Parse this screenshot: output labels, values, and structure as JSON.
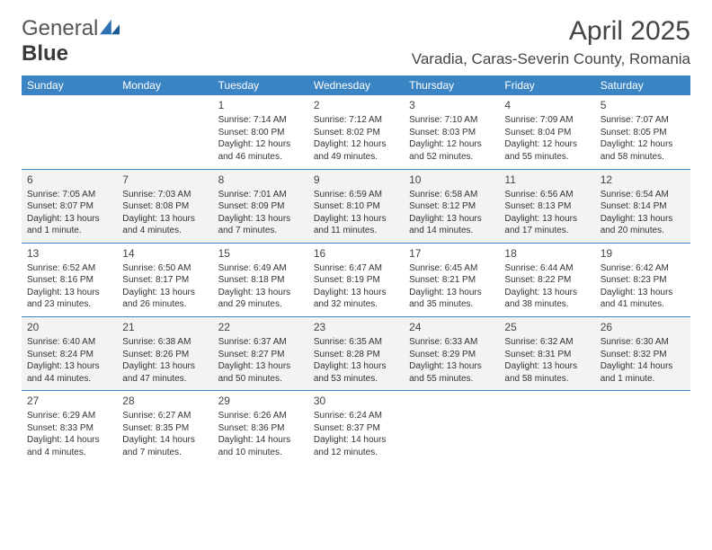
{
  "logo": {
    "word1": "General",
    "word2": "Blue"
  },
  "header": {
    "title": "April 2025",
    "subtitle": "Varadia, Caras-Severin County, Romania"
  },
  "colors": {
    "header_bg": "#3b84c4",
    "header_fg": "#ffffff",
    "row_alt_bg": "#f3f3f3",
    "border": "#3b84c4",
    "text": "#333333",
    "logo_accent": "#2f72b4"
  },
  "days": [
    "Sunday",
    "Monday",
    "Tuesday",
    "Wednesday",
    "Thursday",
    "Friday",
    "Saturday"
  ],
  "weeks": [
    [
      null,
      null,
      {
        "n": "1",
        "sunrise": "Sunrise: 7:14 AM",
        "sunset": "Sunset: 8:00 PM",
        "dl1": "Daylight: 12 hours",
        "dl2": "and 46 minutes."
      },
      {
        "n": "2",
        "sunrise": "Sunrise: 7:12 AM",
        "sunset": "Sunset: 8:02 PM",
        "dl1": "Daylight: 12 hours",
        "dl2": "and 49 minutes."
      },
      {
        "n": "3",
        "sunrise": "Sunrise: 7:10 AM",
        "sunset": "Sunset: 8:03 PM",
        "dl1": "Daylight: 12 hours",
        "dl2": "and 52 minutes."
      },
      {
        "n": "4",
        "sunrise": "Sunrise: 7:09 AM",
        "sunset": "Sunset: 8:04 PM",
        "dl1": "Daylight: 12 hours",
        "dl2": "and 55 minutes."
      },
      {
        "n": "5",
        "sunrise": "Sunrise: 7:07 AM",
        "sunset": "Sunset: 8:05 PM",
        "dl1": "Daylight: 12 hours",
        "dl2": "and 58 minutes."
      }
    ],
    [
      {
        "n": "6",
        "sunrise": "Sunrise: 7:05 AM",
        "sunset": "Sunset: 8:07 PM",
        "dl1": "Daylight: 13 hours",
        "dl2": "and 1 minute."
      },
      {
        "n": "7",
        "sunrise": "Sunrise: 7:03 AM",
        "sunset": "Sunset: 8:08 PM",
        "dl1": "Daylight: 13 hours",
        "dl2": "and 4 minutes."
      },
      {
        "n": "8",
        "sunrise": "Sunrise: 7:01 AM",
        "sunset": "Sunset: 8:09 PM",
        "dl1": "Daylight: 13 hours",
        "dl2": "and 7 minutes."
      },
      {
        "n": "9",
        "sunrise": "Sunrise: 6:59 AM",
        "sunset": "Sunset: 8:10 PM",
        "dl1": "Daylight: 13 hours",
        "dl2": "and 11 minutes."
      },
      {
        "n": "10",
        "sunrise": "Sunrise: 6:58 AM",
        "sunset": "Sunset: 8:12 PM",
        "dl1": "Daylight: 13 hours",
        "dl2": "and 14 minutes."
      },
      {
        "n": "11",
        "sunrise": "Sunrise: 6:56 AM",
        "sunset": "Sunset: 8:13 PM",
        "dl1": "Daylight: 13 hours",
        "dl2": "and 17 minutes."
      },
      {
        "n": "12",
        "sunrise": "Sunrise: 6:54 AM",
        "sunset": "Sunset: 8:14 PM",
        "dl1": "Daylight: 13 hours",
        "dl2": "and 20 minutes."
      }
    ],
    [
      {
        "n": "13",
        "sunrise": "Sunrise: 6:52 AM",
        "sunset": "Sunset: 8:16 PM",
        "dl1": "Daylight: 13 hours",
        "dl2": "and 23 minutes."
      },
      {
        "n": "14",
        "sunrise": "Sunrise: 6:50 AM",
        "sunset": "Sunset: 8:17 PM",
        "dl1": "Daylight: 13 hours",
        "dl2": "and 26 minutes."
      },
      {
        "n": "15",
        "sunrise": "Sunrise: 6:49 AM",
        "sunset": "Sunset: 8:18 PM",
        "dl1": "Daylight: 13 hours",
        "dl2": "and 29 minutes."
      },
      {
        "n": "16",
        "sunrise": "Sunrise: 6:47 AM",
        "sunset": "Sunset: 8:19 PM",
        "dl1": "Daylight: 13 hours",
        "dl2": "and 32 minutes."
      },
      {
        "n": "17",
        "sunrise": "Sunrise: 6:45 AM",
        "sunset": "Sunset: 8:21 PM",
        "dl1": "Daylight: 13 hours",
        "dl2": "and 35 minutes."
      },
      {
        "n": "18",
        "sunrise": "Sunrise: 6:44 AM",
        "sunset": "Sunset: 8:22 PM",
        "dl1": "Daylight: 13 hours",
        "dl2": "and 38 minutes."
      },
      {
        "n": "19",
        "sunrise": "Sunrise: 6:42 AM",
        "sunset": "Sunset: 8:23 PM",
        "dl1": "Daylight: 13 hours",
        "dl2": "and 41 minutes."
      }
    ],
    [
      {
        "n": "20",
        "sunrise": "Sunrise: 6:40 AM",
        "sunset": "Sunset: 8:24 PM",
        "dl1": "Daylight: 13 hours",
        "dl2": "and 44 minutes."
      },
      {
        "n": "21",
        "sunrise": "Sunrise: 6:38 AM",
        "sunset": "Sunset: 8:26 PM",
        "dl1": "Daylight: 13 hours",
        "dl2": "and 47 minutes."
      },
      {
        "n": "22",
        "sunrise": "Sunrise: 6:37 AM",
        "sunset": "Sunset: 8:27 PM",
        "dl1": "Daylight: 13 hours",
        "dl2": "and 50 minutes."
      },
      {
        "n": "23",
        "sunrise": "Sunrise: 6:35 AM",
        "sunset": "Sunset: 8:28 PM",
        "dl1": "Daylight: 13 hours",
        "dl2": "and 53 minutes."
      },
      {
        "n": "24",
        "sunrise": "Sunrise: 6:33 AM",
        "sunset": "Sunset: 8:29 PM",
        "dl1": "Daylight: 13 hours",
        "dl2": "and 55 minutes."
      },
      {
        "n": "25",
        "sunrise": "Sunrise: 6:32 AM",
        "sunset": "Sunset: 8:31 PM",
        "dl1": "Daylight: 13 hours",
        "dl2": "and 58 minutes."
      },
      {
        "n": "26",
        "sunrise": "Sunrise: 6:30 AM",
        "sunset": "Sunset: 8:32 PM",
        "dl1": "Daylight: 14 hours",
        "dl2": "and 1 minute."
      }
    ],
    [
      {
        "n": "27",
        "sunrise": "Sunrise: 6:29 AM",
        "sunset": "Sunset: 8:33 PM",
        "dl1": "Daylight: 14 hours",
        "dl2": "and 4 minutes."
      },
      {
        "n": "28",
        "sunrise": "Sunrise: 6:27 AM",
        "sunset": "Sunset: 8:35 PM",
        "dl1": "Daylight: 14 hours",
        "dl2": "and 7 minutes."
      },
      {
        "n": "29",
        "sunrise": "Sunrise: 6:26 AM",
        "sunset": "Sunset: 8:36 PM",
        "dl1": "Daylight: 14 hours",
        "dl2": "and 10 minutes."
      },
      {
        "n": "30",
        "sunrise": "Sunrise: 6:24 AM",
        "sunset": "Sunset: 8:37 PM",
        "dl1": "Daylight: 14 hours",
        "dl2": "and 12 minutes."
      },
      null,
      null,
      null
    ]
  ]
}
